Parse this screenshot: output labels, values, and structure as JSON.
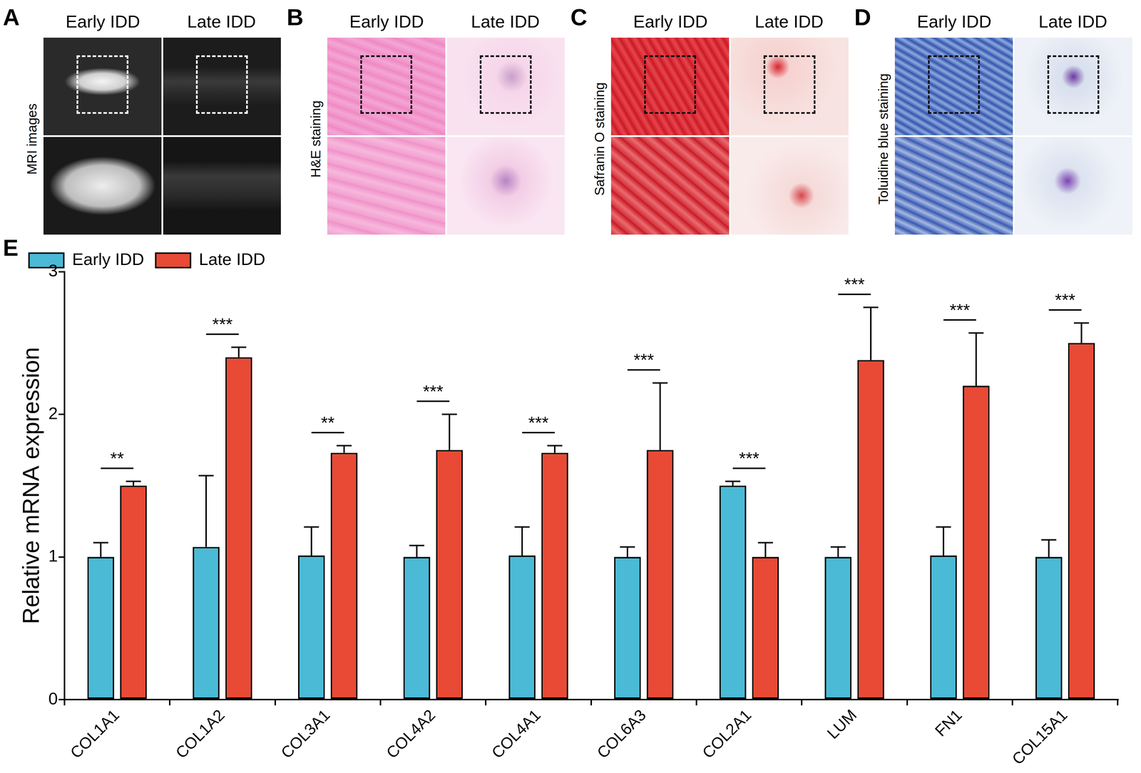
{
  "panels": [
    {
      "label": "A",
      "columns": [
        "Early IDD",
        "Late IDD"
      ],
      "row_label": "MRI images"
    },
    {
      "label": "B",
      "columns": [
        "Early IDD",
        "Late IDD"
      ],
      "row_label": "H&E staining"
    },
    {
      "label": "C",
      "columns": [
        "Early IDD",
        "Late IDD"
      ],
      "row_label": "Safranin O staining"
    },
    {
      "label": "D",
      "columns": [
        "Early IDD",
        "Late IDD"
      ],
      "row_label": "Toluidine blue staining"
    }
  ],
  "chart_data": {
    "panel_label": "E",
    "type": "bar",
    "y_label": "Relative mRNA expression",
    "categories": [
      "COL1A1",
      "COL1A2",
      "COL3A1",
      "COL4A2",
      "COL4A1",
      "COL6A3",
      "COL2A1",
      "LUM",
      "FN1",
      "COL15A1"
    ],
    "series": [
      {
        "name": "Early IDD",
        "color": "#4bbad6",
        "values": [
          1.0,
          1.07,
          1.01,
          1.0,
          1.01,
          1.0,
          1.5,
          1.0,
          1.01,
          1.0
        ],
        "errors": [
          0.1,
          0.5,
          0.2,
          0.08,
          0.2,
          0.07,
          0.03,
          0.07,
          0.2,
          0.12
        ]
      },
      {
        "name": "Late IDD",
        "color": "#e84a35",
        "values": [
          1.5,
          2.4,
          1.73,
          1.75,
          1.73,
          1.75,
          1.0,
          2.38,
          2.2,
          2.5
        ],
        "errors": [
          0.03,
          0.07,
          0.05,
          0.25,
          0.05,
          0.47,
          0.1,
          0.37,
          0.37,
          0.14
        ]
      }
    ],
    "annotations": [
      {
        "category": "COL1A1",
        "text": "**"
      },
      {
        "category": "COL1A2",
        "text": "***"
      },
      {
        "category": "COL3A1",
        "text": "**"
      },
      {
        "category": "COL4A2",
        "text": "***"
      },
      {
        "category": "COL4A1",
        "text": "***"
      },
      {
        "category": "COL6A3",
        "text": "***"
      },
      {
        "category": "COL2A1",
        "text": "***"
      },
      {
        "category": "LUM",
        "text": "***"
      },
      {
        "category": "FN1",
        "text": "***"
      },
      {
        "category": "COL15A1",
        "text": "***"
      }
    ],
    "ylim": [
      0,
      3
    ],
    "yticks": [
      0,
      1,
      2,
      3
    ],
    "legend": "upper left",
    "grid": false
  }
}
